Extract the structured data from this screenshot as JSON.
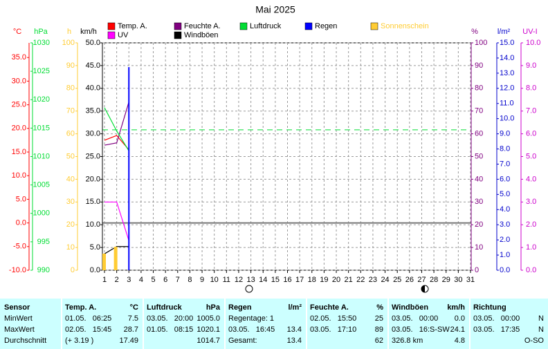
{
  "chart_data": {
    "type": "line",
    "title": "Mai 2025",
    "xlim": [
      1,
      31
    ],
    "xticks": [
      1,
      2,
      3,
      4,
      5,
      6,
      7,
      8,
      9,
      10,
      11,
      12,
      13,
      14,
      15,
      16,
      17,
      18,
      19,
      20,
      21,
      22,
      23,
      24,
      25,
      26,
      27,
      28,
      29,
      30,
      31
    ],
    "grid": true,
    "axes": {
      "temp": {
        "unit": "°C",
        "color": "#ff0000",
        "side": "left",
        "lim": [
          -10,
          38.1
        ],
        "ticks": [
          {
            "value": -10,
            "label": "-10.0"
          },
          {
            "value": -5,
            "label": "-5.0"
          },
          {
            "value": 0,
            "label": "0.0"
          },
          {
            "value": 5,
            "label": "5.0"
          },
          {
            "value": 10,
            "label": "10.0"
          },
          {
            "value": 15,
            "label": "15.0"
          },
          {
            "value": 20,
            "label": "20.0"
          },
          {
            "value": 25,
            "label": "25.0"
          },
          {
            "value": 30,
            "label": "30.0"
          },
          {
            "value": 35,
            "label": "35.0"
          }
        ]
      },
      "pressure": {
        "unit": "hPa",
        "color": "#00dd33",
        "side": "left",
        "lim": [
          990,
          1030
        ],
        "ticks": [
          990,
          995,
          1000,
          1005,
          1010,
          1015,
          1020,
          1025,
          1030
        ]
      },
      "sun": {
        "unit": "h",
        "color": "#ffcc33",
        "side": "left",
        "lim": [
          0,
          100
        ],
        "ticks": [
          0,
          10,
          20,
          30,
          40,
          50,
          60,
          70,
          80,
          90,
          100
        ]
      },
      "wind": {
        "unit": "km/h",
        "color": "#000000",
        "side": "left",
        "lim": [
          0,
          50
        ],
        "ticks": [
          {
            "value": 0,
            "label": "0.0"
          },
          {
            "value": 5,
            "label": "5.0"
          },
          {
            "value": 10,
            "label": "10.0"
          },
          {
            "value": 15,
            "label": "15.0"
          },
          {
            "value": 20,
            "label": "20.0"
          },
          {
            "value": 25,
            "label": "25.0"
          },
          {
            "value": 30,
            "label": "30.0"
          },
          {
            "value": 35,
            "label": "35.0"
          },
          {
            "value": 40,
            "label": "40.0"
          },
          {
            "value": 45,
            "label": "45.0"
          },
          {
            "value": 50,
            "label": "50.0"
          }
        ]
      },
      "humidity": {
        "unit": "%",
        "color": "#800080",
        "side": "right",
        "lim": [
          0,
          100
        ],
        "ticks": [
          0,
          10,
          20,
          30,
          40,
          50,
          60,
          70,
          80,
          90,
          100
        ]
      },
      "rain": {
        "unit": "l/m²",
        "color": "#0000cc",
        "side": "right",
        "lim": [
          0,
          15
        ],
        "ticks": [
          {
            "value": 0,
            "label": "0.0"
          },
          {
            "value": 1,
            "label": "1.0"
          },
          {
            "value": 2,
            "label": "2.0"
          },
          {
            "value": 3,
            "label": "3.0"
          },
          {
            "value": 4,
            "label": "4.0"
          },
          {
            "value": 5,
            "label": "5.0"
          },
          {
            "value": 6,
            "label": "6.0"
          },
          {
            "value": 7,
            "label": "7.0"
          },
          {
            "value": 8,
            "label": "8.0"
          },
          {
            "value": 9,
            "label": "9.0"
          },
          {
            "value": 10,
            "label": "10.0"
          },
          {
            "value": 11,
            "label": "11.0"
          },
          {
            "value": 12,
            "label": "12.0"
          },
          {
            "value": 13,
            "label": "13.0"
          },
          {
            "value": 14,
            "label": "14.0"
          },
          {
            "value": 15,
            "label": "15.0"
          }
        ]
      },
      "uv": {
        "unit": "UV-I",
        "color": "#cc00cc",
        "side": "right",
        "lim": [
          0,
          10
        ],
        "ticks": [
          {
            "value": 0,
            "label": "0.0"
          },
          {
            "value": 1,
            "label": "1.0"
          },
          {
            "value": 2,
            "label": "2.0"
          },
          {
            "value": 3,
            "label": "3.0"
          },
          {
            "value": 4,
            "label": "4.0"
          },
          {
            "value": 5,
            "label": "5.0"
          },
          {
            "value": 6,
            "label": "6.0"
          },
          {
            "value": 7,
            "label": "7.0"
          },
          {
            "value": 8,
            "label": "8.0"
          },
          {
            "value": 9,
            "label": "9.0"
          },
          {
            "value": 10,
            "label": "10.0"
          }
        ]
      }
    },
    "pressure_mean": 1014.7,
    "series": [
      {
        "name": "Temp. A.",
        "color": "#ff0000",
        "axis": "temp",
        "mark": "line",
        "x": [
          1,
          2,
          3
        ],
        "values": [
          17.5,
          18.5,
          15.5
        ]
      },
      {
        "name": "UV",
        "color": "#ff00ff",
        "axis": "uv",
        "mark": "line",
        "x": [
          1,
          2,
          3
        ],
        "values": [
          3.0,
          3.0,
          1.3
        ]
      },
      {
        "name": "Feuchte A.",
        "color": "#800080",
        "axis": "humidity",
        "mark": "line",
        "x": [
          1,
          2,
          3
        ],
        "values": [
          55,
          56,
          74
        ]
      },
      {
        "name": "Windböen",
        "color": "#000000",
        "axis": "wind",
        "mark": "line",
        "x": [
          1,
          2,
          3
        ],
        "values": [
          3.6,
          5.2,
          5.2
        ]
      },
      {
        "name": "Luftdruck",
        "color": "#00dd33",
        "axis": "pressure",
        "mark": "line",
        "x": [
          1,
          2,
          3
        ],
        "values": [
          1018.6,
          1014.5,
          1011.0
        ]
      },
      {
        "name": "Regen",
        "color": "#0000ff",
        "axis": "rain",
        "mark": "bar",
        "x": [
          1,
          2,
          3
        ],
        "values": [
          0,
          0,
          13.4
        ]
      },
      {
        "name": "Sonnenschein",
        "color": "#ffcc33",
        "legend_color": "#ffcc33",
        "axis": "sun",
        "mark": "bar",
        "x": [
          1,
          2,
          3
        ],
        "values": [
          7.3,
          10.3,
          0
        ]
      }
    ]
  },
  "table": {
    "header": {
      "label": "Sensor",
      "groups": [
        [
          "Temp. A.",
          "°C"
        ],
        [
          "Luftdruck",
          "hPa"
        ],
        [
          "Regen",
          "l/m²"
        ],
        [
          "Feuchte A.",
          "%"
        ],
        [
          "Windböen",
          "km/h"
        ],
        [
          "Richtung",
          null
        ]
      ]
    },
    "rows": [
      {
        "label": "MinWert",
        "groups": [
          [
            "01.05.   06:25",
            "7.5"
          ],
          [
            "03.05.   20:00",
            "1005.0"
          ],
          [
            "Regentage: 1",
            null
          ],
          [
            "02.05.   15:50",
            "25"
          ],
          [
            "03.05.   00:00",
            "0.0"
          ],
          [
            "03.05.   00:00",
            "N"
          ]
        ]
      },
      {
        "label": "MaxWert",
        "groups": [
          [
            "02.05.   15:45",
            "28.7"
          ],
          [
            "01.05.   08:15",
            "1020.1"
          ],
          [
            "03.05.   16:45",
            "13.4"
          ],
          [
            "03.05.   17:10",
            "89"
          ],
          [
            "03.05.   16:S-SW",
            "24.1"
          ],
          [
            "03.05.   17:35",
            "N"
          ]
        ]
      },
      {
        "label": "Durchschnitt",
        "groups": [
          [
            "(+ 3.19 )",
            "17.49"
          ],
          [
            null,
            "1014.7"
          ],
          [
            "Gesamt:",
            "13.4"
          ],
          [
            null,
            "62"
          ],
          [
            "326.8 km",
            "4.8"
          ],
          [
            null,
            "O-SO"
          ]
        ]
      }
    ]
  }
}
